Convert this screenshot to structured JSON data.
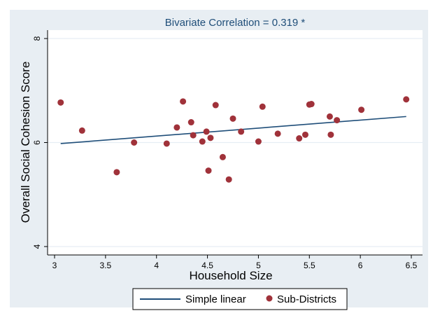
{
  "chart_data": {
    "type": "scatter",
    "title": "Bivariate Correlation = 0.319 *",
    "xlabel": "Household Size",
    "ylabel": "Overall Social Cohesion Score",
    "xlim": [
      3,
      6.5
    ],
    "ylim": [
      4,
      8
    ],
    "xticks": [
      "3",
      "3.5",
      "4",
      "4.5",
      "5",
      "5.5",
      "6",
      "6.5"
    ],
    "yticks": [
      "4",
      "6",
      "8"
    ],
    "grid": true,
    "legend_position": "bottom",
    "legend": [
      {
        "label": "Simple linear",
        "kind": "line"
      },
      {
        "label": "Sub-Districts",
        "kind": "marker"
      }
    ],
    "colors": {
      "background": "#e8eef3",
      "fit_line": "#1f4e79",
      "points": "#a0323a",
      "grid": "#ffffff"
    },
    "series": [
      {
        "name": "Sub-Districts",
        "type": "scatter",
        "points": [
          [
            3.06,
            6.77
          ],
          [
            3.27,
            6.23
          ],
          [
            3.61,
            5.43
          ],
          [
            3.78,
            6.0
          ],
          [
            4.1,
            5.98
          ],
          [
            4.2,
            6.29
          ],
          [
            4.26,
            6.79
          ],
          [
            4.34,
            6.39
          ],
          [
            4.36,
            6.14
          ],
          [
            4.45,
            6.02
          ],
          [
            4.49,
            6.21
          ],
          [
            4.51,
            5.46
          ],
          [
            4.53,
            6.09
          ],
          [
            4.58,
            6.72
          ],
          [
            4.65,
            5.72
          ],
          [
            4.71,
            5.29
          ],
          [
            4.75,
            6.46
          ],
          [
            4.83,
            6.21
          ],
          [
            5.0,
            6.02
          ],
          [
            5.04,
            6.69
          ],
          [
            5.19,
            6.17
          ],
          [
            5.4,
            6.08
          ],
          [
            5.46,
            6.15
          ],
          [
            5.5,
            6.73
          ],
          [
            5.52,
            6.74
          ],
          [
            5.7,
            6.5
          ],
          [
            5.71,
            6.15
          ],
          [
            5.77,
            6.43
          ],
          [
            6.01,
            6.63
          ],
          [
            6.45,
            6.83
          ]
        ]
      },
      {
        "name": "Simple linear",
        "type": "line",
        "points": [
          [
            3.06,
            5.98
          ],
          [
            6.45,
            6.5
          ]
        ]
      }
    ]
  }
}
